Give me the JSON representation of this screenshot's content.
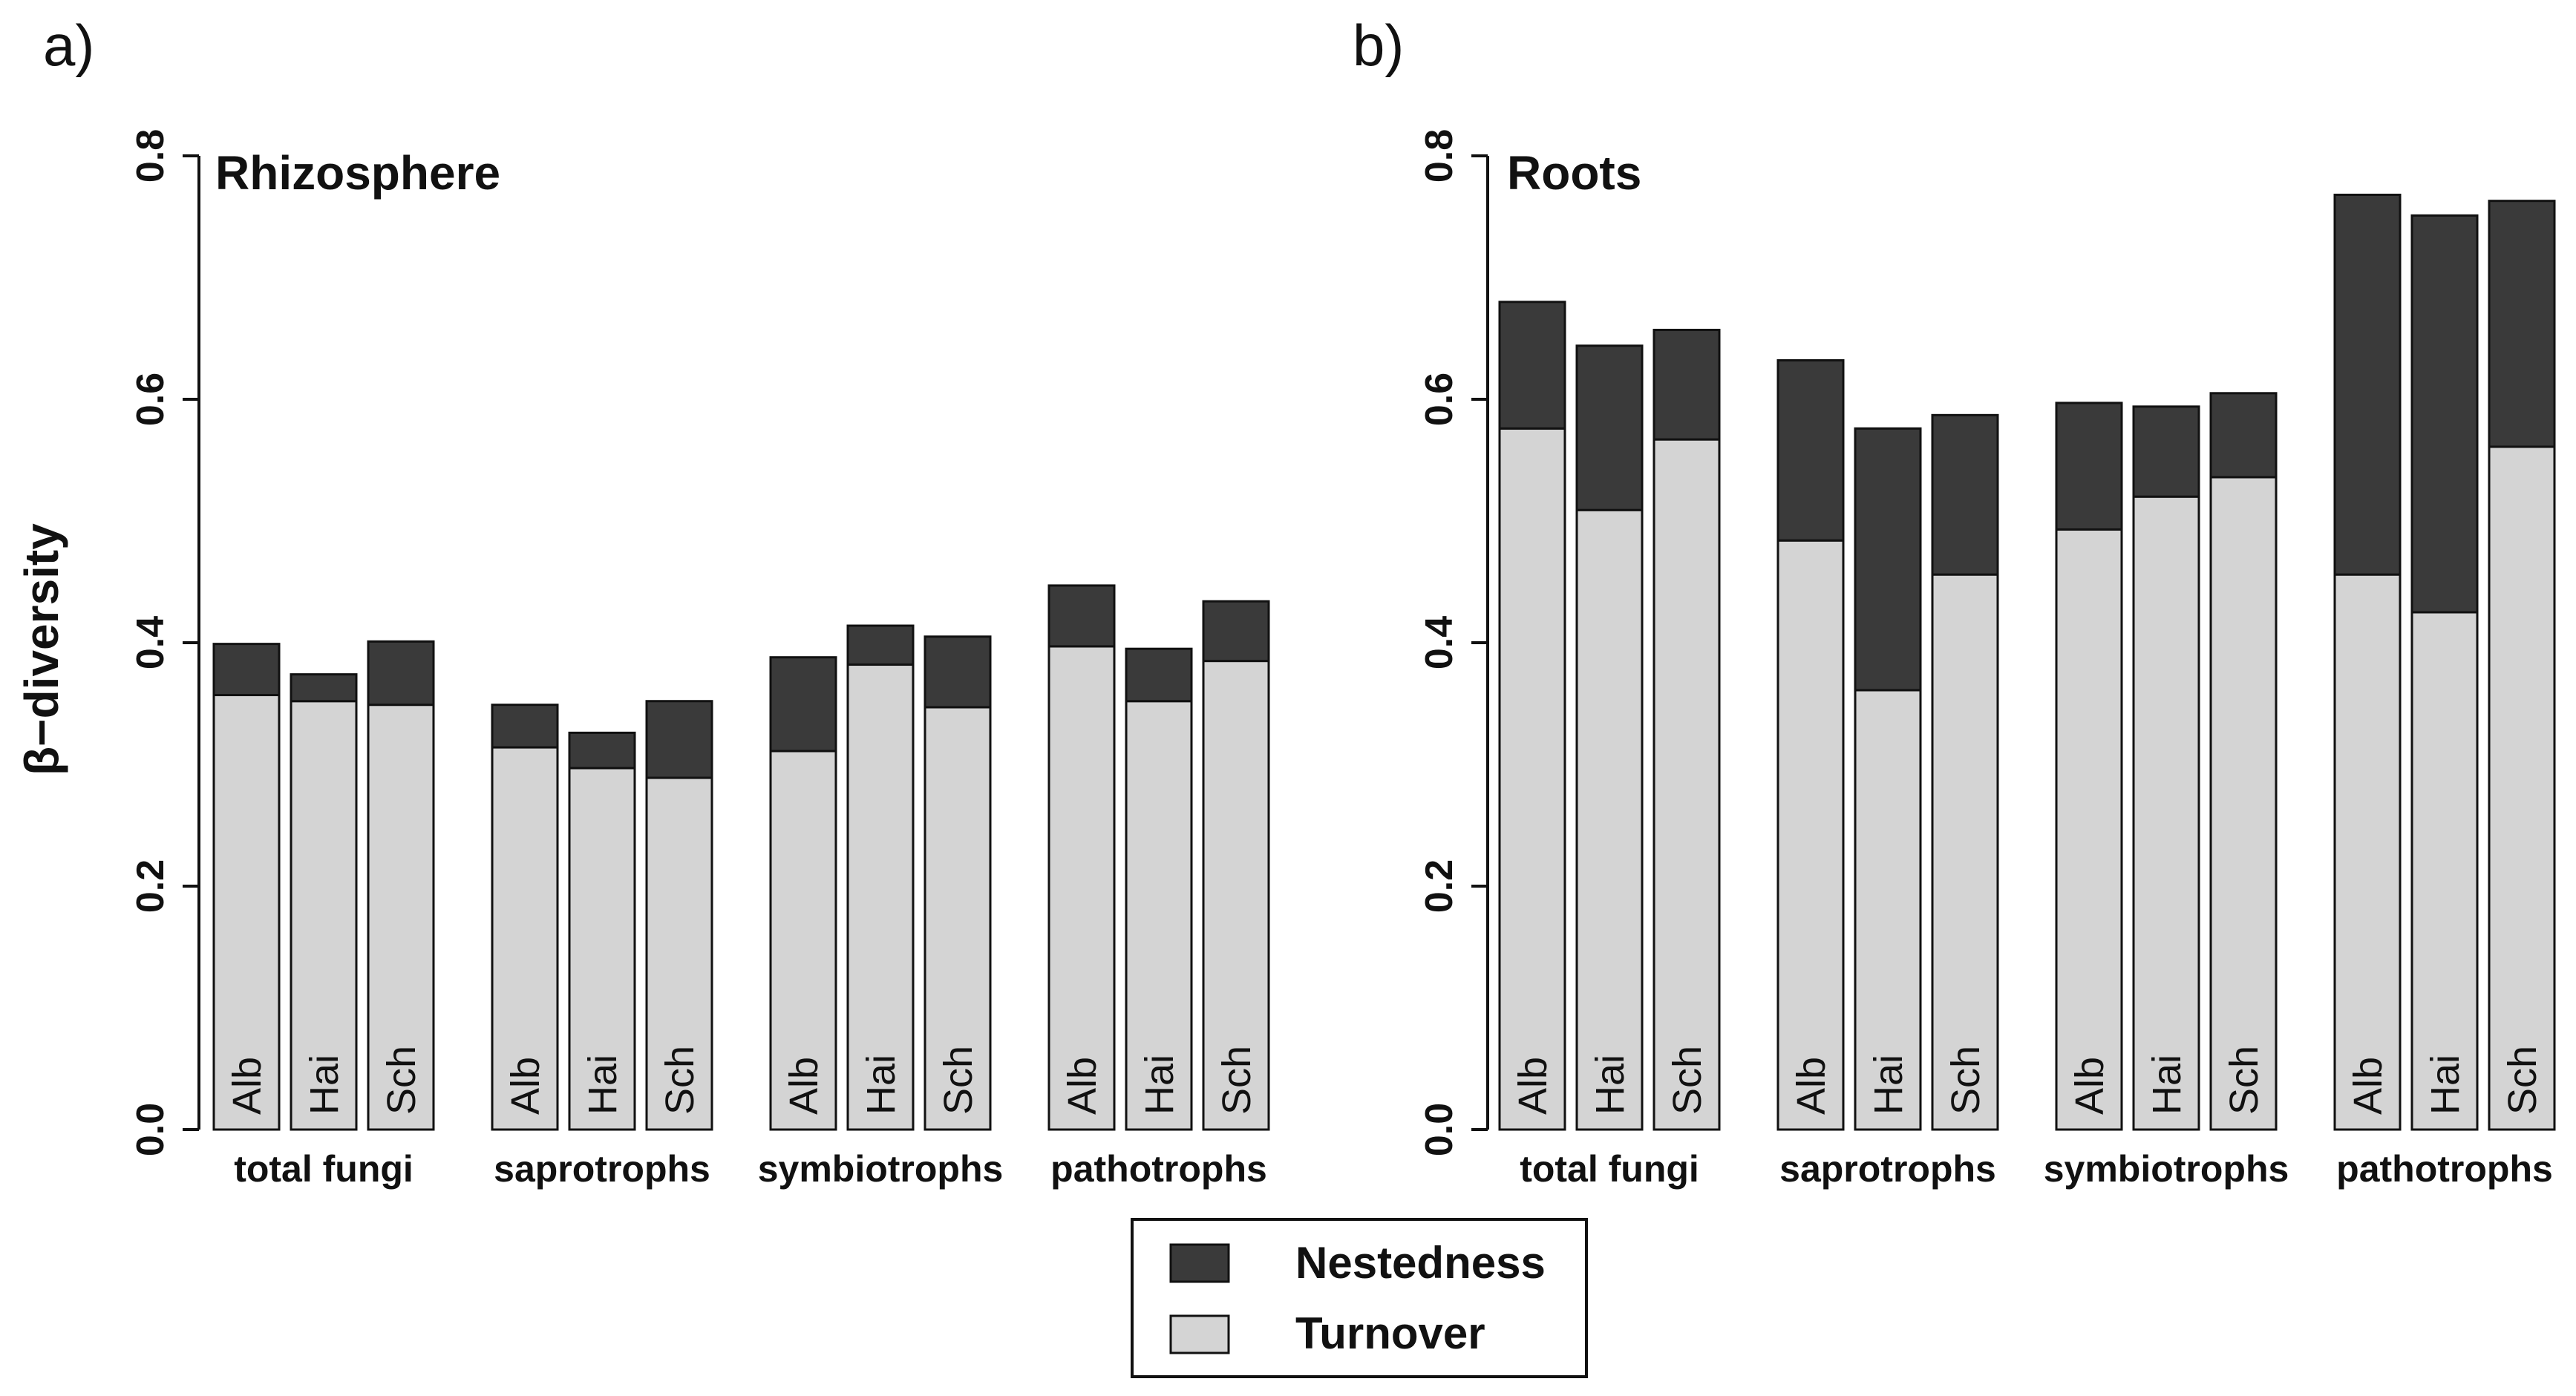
{
  "ylabel": "β−diversity",
  "y_ticks": [
    "0.0",
    "0.2",
    "0.4",
    "0.6",
    "0.8"
  ],
  "legend": {
    "items": [
      {
        "label": "Nestedness",
        "color": "#3a3a3a"
      },
      {
        "label": "Turnover",
        "color": "#d4d4d4"
      }
    ]
  },
  "colors": {
    "nestedness": "#3a3a3a",
    "turnover": "#d4d4d4",
    "outline": "#111111"
  },
  "chart_data": [
    {
      "type": "bar",
      "stacked": true,
      "panel_letter": "a)",
      "title": "Rhizosphere",
      "ylabel": "β−diversity",
      "ylim": [
        0,
        0.8
      ],
      "groups": [
        "total fungi",
        "saprotrophs",
        "symbiotrophs",
        "pathotrophs"
      ],
      "bar_labels": [
        "Alb",
        "Hai",
        "Sch"
      ],
      "series": [
        {
          "name": "Turnover",
          "values": [
            [
              0.357,
              0.352,
              0.349
            ],
            [
              0.314,
              0.297,
              0.289
            ],
            [
              0.311,
              0.382,
              0.347
            ],
            [
              0.397,
              0.352,
              0.385
            ]
          ]
        },
        {
          "name": "Nestedness",
          "values": [
            [
              0.042,
              0.022,
              0.052
            ],
            [
              0.035,
              0.029,
              0.063
            ],
            [
              0.077,
              0.032,
              0.058
            ],
            [
              0.05,
              0.043,
              0.049
            ]
          ]
        }
      ],
      "totals": [
        [
          0.399,
          0.374,
          0.401
        ],
        [
          0.349,
          0.326,
          0.352
        ],
        [
          0.388,
          0.414,
          0.405
        ],
        [
          0.447,
          0.395,
          0.434
        ]
      ]
    },
    {
      "type": "bar",
      "stacked": true,
      "panel_letter": "b)",
      "title": "Roots",
      "ylabel": "",
      "ylim": [
        0,
        0.8
      ],
      "groups": [
        "total fungi",
        "saprotrophs",
        "symbiotrophs",
        "pathotrophs"
      ],
      "bar_labels": [
        "Alb",
        "Hai",
        "Sch"
      ],
      "series": [
        {
          "name": "Turnover",
          "values": [
            [
              0.576,
              0.509,
              0.567
            ],
            [
              0.484,
              0.361,
              0.456
            ],
            [
              0.493,
              0.52,
              0.536
            ],
            [
              0.456,
              0.425,
              0.561
            ]
          ]
        },
        {
          "name": "Nestedness",
          "values": [
            [
              0.104,
              0.135,
              0.09
            ],
            [
              0.148,
              0.215,
              0.131
            ],
            [
              0.104,
              0.074,
              0.069
            ],
            [
              0.312,
              0.326,
              0.202
            ]
          ]
        }
      ],
      "totals": [
        [
          0.68,
          0.644,
          0.657
        ],
        [
          0.632,
          0.576,
          0.587
        ],
        [
          0.597,
          0.594,
          0.605
        ],
        [
          0.768,
          0.751,
          0.763
        ]
      ]
    }
  ]
}
